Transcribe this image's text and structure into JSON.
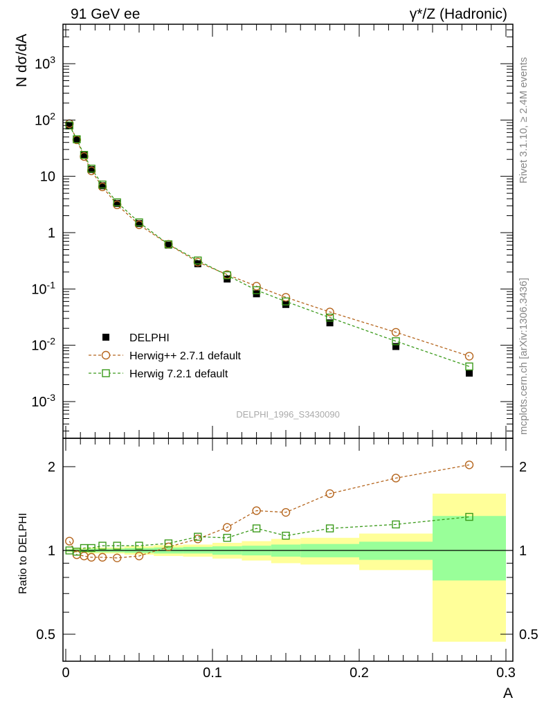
{
  "header": {
    "left": "91 GeV ee",
    "right": "γ*/Z (Hadronic)"
  },
  "side_texts": {
    "rivet": "Rivet 3.1.10, ≥ 2.4M events",
    "mcplots": "mcplots.cern.ch [arXiv:1306.3436]"
  },
  "watermark": "DELPHI_1996_S3430090",
  "colors": {
    "data": "#000000",
    "herwigpp": "#b5651d",
    "herwig7": "#3a9a1a",
    "band_yellow": "#ffff99",
    "band_green": "#99ff99"
  },
  "chart_data": [
    {
      "type": "scatter",
      "ylabel": "N dσ/dA",
      "xlabel": "A",
      "xlim": [
        0,
        0.3
      ],
      "ylim": [
        0.00025,
        5000
      ],
      "yscale": "log",
      "y_ticks": [
        "10-3",
        "10-2",
        "10-1",
        "1",
        "10",
        "102",
        "103"
      ],
      "legend_position": "bottom-left",
      "series": [
        {
          "name": "DELPHI",
          "marker": "filled-square",
          "x": [
            0.0025,
            0.0075,
            0.0125,
            0.0175,
            0.025,
            0.035,
            0.05,
            0.07,
            0.09,
            0.11,
            0.13,
            0.15,
            0.18,
            0.225,
            0.275
          ],
          "y": [
            80,
            46,
            23.5,
            13.2,
            6.8,
            3.3,
            1.45,
            0.6,
            0.28,
            0.15,
            0.082,
            0.053,
            0.025,
            0.0095,
            0.0032
          ]
        },
        {
          "name": "Herwig++ 2.7.1 default",
          "marker": "open-circle",
          "x": [
            0.0025,
            0.0075,
            0.0125,
            0.0175,
            0.025,
            0.035,
            0.05,
            0.07,
            0.09,
            0.11,
            0.13,
            0.15,
            0.18,
            0.225,
            0.275
          ],
          "y": [
            86,
            44.5,
            22.5,
            12.5,
            6.5,
            3.12,
            1.38,
            0.62,
            0.3,
            0.18,
            0.112,
            0.071,
            0.039,
            0.017,
            0.0064
          ]
        },
        {
          "name": "Herwig 7.2.1 default",
          "marker": "open-square",
          "x": [
            0.0025,
            0.0075,
            0.0125,
            0.0175,
            0.025,
            0.035,
            0.05,
            0.07,
            0.09,
            0.11,
            0.13,
            0.15,
            0.18,
            0.225,
            0.275
          ],
          "y": [
            80,
            45.5,
            24,
            13.7,
            7.15,
            3.45,
            1.52,
            0.62,
            0.32,
            0.175,
            0.095,
            0.06,
            0.031,
            0.0118,
            0.0042
          ]
        }
      ]
    },
    {
      "type": "scatter",
      "ylabel": "Ratio to DELPHI",
      "xlabel": "A",
      "xlim": [
        0,
        0.3
      ],
      "ylim": [
        0.42,
        2.35
      ],
      "yscale": "log",
      "y_ticks": [
        "0.5",
        "1",
        "2"
      ],
      "x_ticks": [
        "0",
        "0.1",
        "0.2",
        "0.3"
      ],
      "bands": [
        {
          "xlo": 0.0,
          "xhi": 0.005,
          "yellow": [
            0.985,
            1.015
          ],
          "green": [
            0.99,
            1.01
          ]
        },
        {
          "xlo": 0.005,
          "xhi": 0.01,
          "yellow": [
            0.985,
            1.015
          ],
          "green": [
            0.99,
            1.01
          ]
        },
        {
          "xlo": 0.01,
          "xhi": 0.015,
          "yellow": [
            0.98,
            1.02
          ],
          "green": [
            0.99,
            1.01
          ]
        },
        {
          "xlo": 0.015,
          "xhi": 0.02,
          "yellow": [
            0.975,
            1.025
          ],
          "green": [
            0.985,
            1.015
          ]
        },
        {
          "xlo": 0.02,
          "xhi": 0.03,
          "yellow": [
            0.975,
            1.025
          ],
          "green": [
            0.985,
            1.015
          ]
        },
        {
          "xlo": 0.03,
          "xhi": 0.04,
          "yellow": [
            0.975,
            1.025
          ],
          "green": [
            0.985,
            1.015
          ]
        },
        {
          "xlo": 0.04,
          "xhi": 0.06,
          "yellow": [
            0.965,
            1.035
          ],
          "green": [
            0.98,
            1.02
          ]
        },
        {
          "xlo": 0.06,
          "xhi": 0.08,
          "yellow": [
            0.955,
            1.045
          ],
          "green": [
            0.975,
            1.025
          ]
        },
        {
          "xlo": 0.08,
          "xhi": 0.1,
          "yellow": [
            0.95,
            1.05
          ],
          "green": [
            0.975,
            1.03
          ]
        },
        {
          "xlo": 0.1,
          "xhi": 0.12,
          "yellow": [
            0.935,
            1.065
          ],
          "green": [
            0.965,
            1.035
          ]
        },
        {
          "xlo": 0.12,
          "xhi": 0.14,
          "yellow": [
            0.92,
            1.08
          ],
          "green": [
            0.96,
            1.04
          ]
        },
        {
          "xlo": 0.14,
          "xhi": 0.16,
          "yellow": [
            0.9,
            1.1
          ],
          "green": [
            0.95,
            1.05
          ]
        },
        {
          "xlo": 0.16,
          "xhi": 0.2,
          "yellow": [
            0.89,
            1.11
          ],
          "green": [
            0.945,
            1.055
          ]
        },
        {
          "xlo": 0.2,
          "xhi": 0.25,
          "yellow": [
            0.85,
            1.15
          ],
          "green": [
            0.925,
            1.075
          ]
        },
        {
          "xlo": 0.25,
          "xhi": 0.3,
          "yellow": [
            0.47,
            1.6
          ],
          "green": [
            0.78,
            1.33
          ]
        }
      ],
      "series": [
        {
          "name": "Herwig++ 2.7.1 default",
          "marker": "open-circle",
          "x": [
            0.0025,
            0.0075,
            0.0125,
            0.0175,
            0.025,
            0.035,
            0.05,
            0.07,
            0.09,
            0.11,
            0.13,
            0.15,
            0.18,
            0.225,
            0.275
          ],
          "y": [
            1.08,
            0.965,
            0.955,
            0.945,
            0.945,
            0.94,
            0.955,
            1.03,
            1.1,
            1.21,
            1.39,
            1.37,
            1.6,
            1.82,
            2.03
          ]
        },
        {
          "name": "Herwig 7.2.1 default",
          "marker": "open-square",
          "x": [
            0.0025,
            0.0075,
            0.0125,
            0.0175,
            0.025,
            0.035,
            0.05,
            0.07,
            0.09,
            0.11,
            0.13,
            0.15,
            0.18,
            0.225,
            0.275
          ],
          "y": [
            1.0,
            0.99,
            1.02,
            1.02,
            1.04,
            1.04,
            1.04,
            1.06,
            1.12,
            1.11,
            1.2,
            1.13,
            1.2,
            1.24,
            1.32
          ]
        }
      ]
    }
  ]
}
